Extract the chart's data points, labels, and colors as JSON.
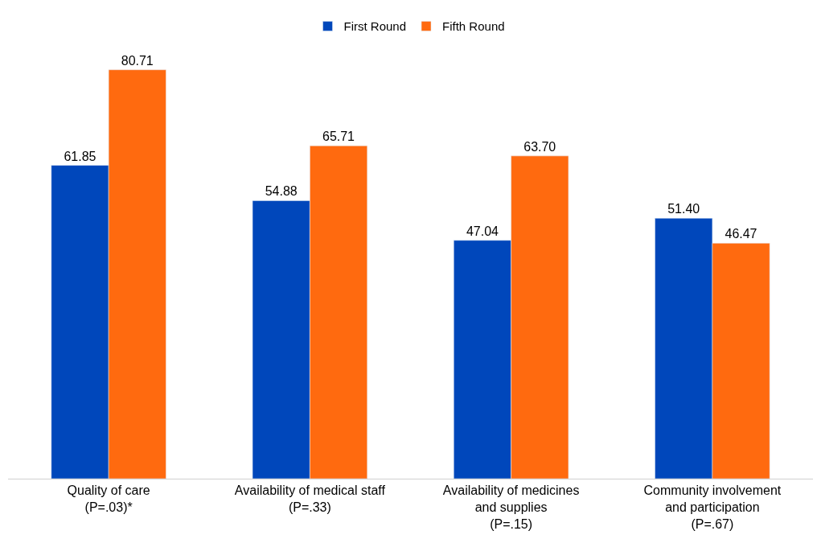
{
  "chart_data": {
    "type": "bar",
    "categories": [
      "Quality of care\n(P=.03)*",
      "Availability of medical staff\n(P=.33)",
      "Availability of medicines\nand supplies\n(P=.15)",
      "Community involvement\nand participation\n(P=.67)"
    ],
    "series": [
      {
        "name": "First Round",
        "color": "#0047bb",
        "values": [
          61.85,
          54.88,
          47.04,
          51.4
        ],
        "value_labels": [
          "61.85",
          "54.88",
          "47.04",
          "51.40"
        ]
      },
      {
        "name": "Fifth Round",
        "color": "#ff6a0f",
        "values": [
          80.71,
          65.71,
          63.7,
          46.47
        ],
        "value_labels": [
          "80.71",
          "65.71",
          "63.70",
          "46.47"
        ]
      }
    ],
    "legend": "top",
    "tick_labels": "x"
  }
}
